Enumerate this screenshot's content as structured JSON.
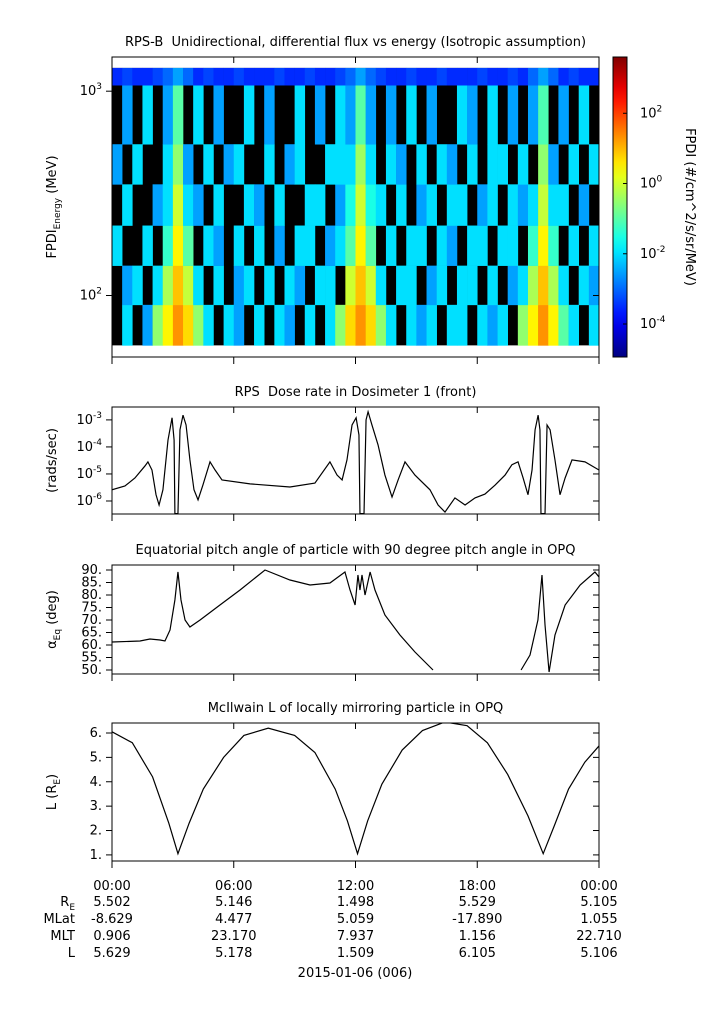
{
  "chart_data": [
    {
      "type": "heatmap",
      "title": "RPS-B  Unidirectional, differential flux vs energy (Isotropic assumption)",
      "ylabel": "FPDI_{Energy} (MeV)",
      "ylog": true,
      "ylim": [
        50,
        1470
      ],
      "yticks": [
        {
          "value": 100,
          "label": "10^{2}"
        },
        {
          "value": 1000,
          "label": "10^{3}"
        }
      ],
      "x_bins": [
        0,
        0.5,
        1,
        1.5,
        2,
        2.5,
        3,
        3.5,
        4,
        4.5,
        5,
        5.5,
        6,
        6.5,
        7,
        7.5,
        8,
        8.5,
        9,
        9.5,
        10,
        10.5,
        11,
        11.5,
        12,
        12.5,
        13,
        13.5,
        14,
        14.5,
        15,
        15.5,
        16,
        16.5,
        17,
        17.5,
        18,
        18.5,
        19,
        19.5,
        20,
        20.5,
        21,
        21.5,
        22,
        22.5,
        23,
        23.5,
        24
      ],
      "y_bins": [
        57,
        90,
        140,
        220,
        350,
        550,
        1070,
        1300
      ],
      "values": [
        [
          null,
          0.01,
          null,
          0.003,
          0.3,
          3,
          20,
          5,
          0.3,
          0.01,
          null,
          0.01,
          0.003,
          null,
          0.01,
          null,
          0.01,
          0.003,
          null,
          0.01,
          null,
          0.01,
          0.3,
          5,
          20,
          5,
          0.3,
          0.01,
          null,
          0.01,
          0.003,
          0.01,
          null,
          0.01,
          0.01,
          null,
          0.01,
          0.003,
          0.01,
          null,
          0.3,
          3,
          20,
          3,
          0.1,
          0.01,
          null,
          0.01
        ],
        [
          null,
          0.003,
          0.01,
          null,
          0.01,
          0.5,
          8,
          0.8,
          0.01,
          null,
          0.01,
          null,
          0.003,
          0.01,
          null,
          0.01,
          null,
          0.01,
          0.003,
          null,
          0.01,
          0.01,
          null,
          1,
          8,
          1,
          0.01,
          null,
          0.01,
          0.01,
          null,
          0.003,
          0.01,
          null,
          0.01,
          0.01,
          null,
          0.01,
          null,
          0.003,
          0.01,
          0.5,
          8,
          0.5,
          0.01,
          null,
          0.01,
          0.003
        ],
        [
          0.01,
          null,
          null,
          0.01,
          null,
          0.05,
          3,
          0.1,
          null,
          0.01,
          0.003,
          null,
          0.01,
          null,
          0.01,
          null,
          0.003,
          null,
          0.01,
          0.01,
          null,
          0.003,
          0.01,
          0.1,
          3,
          0.1,
          null,
          0.01,
          null,
          0.01,
          0.01,
          null,
          0.01,
          0.003,
          null,
          0.01,
          0.01,
          null,
          0.01,
          0.01,
          null,
          0.05,
          3,
          0.05,
          null,
          0.01,
          null,
          0.01
        ],
        [
          null,
          0.01,
          null,
          null,
          0.003,
          0.01,
          1,
          0.01,
          0.003,
          null,
          0.01,
          null,
          null,
          0.01,
          0.003,
          null,
          0.01,
          null,
          null,
          0.01,
          0.01,
          null,
          0.003,
          0.03,
          1,
          0.03,
          0.01,
          null,
          0.01,
          null,
          0.003,
          0.01,
          null,
          0.01,
          0.01,
          null,
          0.003,
          0.01,
          null,
          0.01,
          0.003,
          0.01,
          0.8,
          0.01,
          0.01,
          null,
          0.003,
          null
        ],
        [
          0.003,
          null,
          0.01,
          null,
          null,
          0.01,
          0.3,
          0.003,
          null,
          0.01,
          null,
          0.003,
          0.01,
          null,
          null,
          0.01,
          null,
          0.003,
          0.01,
          null,
          null,
          0.01,
          0.01,
          0.01,
          0.4,
          0.01,
          null,
          0.01,
          0.003,
          null,
          0.01,
          null,
          0.01,
          0.003,
          null,
          0.01,
          null,
          0.01,
          0.01,
          null,
          0.01,
          null,
          0.3,
          0.003,
          null,
          0.01,
          null,
          0.01
        ],
        [
          null,
          0.003,
          null,
          0.01,
          null,
          0.003,
          0.1,
          null,
          0.01,
          null,
          0.003,
          null,
          null,
          0.01,
          null,
          0.003,
          null,
          null,
          0.01,
          null,
          0.003,
          null,
          0.01,
          0.003,
          0.1,
          0.003,
          null,
          0.003,
          null,
          0.01,
          null,
          0.003,
          null,
          null,
          0.01,
          0.003,
          null,
          0.01,
          null,
          0.003,
          null,
          0.003,
          0.08,
          null,
          0.003,
          null,
          0.01,
          null
        ],
        [
          0.0003,
          0.0005,
          0.0003,
          0.0003,
          0.0005,
          0.001,
          0.003,
          0.001,
          0.0003,
          0.0005,
          0.0003,
          0.0003,
          0.0005,
          0.0003,
          0.0003,
          0.0003,
          0.0005,
          0.0003,
          0.0003,
          0.0005,
          0.0003,
          0.0003,
          0.0005,
          0.001,
          0.003,
          0.001,
          0.0005,
          0.0003,
          0.0003,
          0.0005,
          0.0003,
          0.0003,
          0.0005,
          0.0003,
          0.0003,
          0.0003,
          0.0005,
          0.0003,
          0.0003,
          0.0005,
          0.0003,
          0.001,
          0.003,
          0.001,
          0.0003,
          0.0005,
          0.0003,
          0.0003
        ]
      ],
      "colormap": "jet",
      "colorbar": {
        "label": "FPDI (#/cm^2/s/sr/MeV)",
        "log": true,
        "lim": [
          1.15e-05,
          4000
        ],
        "ticks": [
          {
            "value": 0.0001,
            "label": "10^{-4}"
          },
          {
            "value": 0.01,
            "label": "10^{-2}"
          },
          {
            "value": 1,
            "label": "10^{0}"
          },
          {
            "value": 100,
            "label": "10^{2}"
          }
        ]
      }
    },
    {
      "type": "line",
      "title": "RPS  Dose rate in Dosimeter 1 (front)",
      "ylabel": "(rads/sec)",
      "ylog": true,
      "ylim": [
        3.3e-07,
        0.003
      ],
      "yticks": [
        {
          "value": 1e-06,
          "label": "10^{-6}"
        },
        {
          "value": 1e-05,
          "label": "10^{-5}"
        },
        {
          "value": 0.0001,
          "label": "10^{-4}"
        },
        {
          "value": 0.001,
          "label": "10^{-3}"
        }
      ],
      "x": [
        0,
        0.64,
        1.13,
        1.63,
        1.77,
        1.97,
        2.17,
        2.32,
        2.51,
        2.76,
        2.96,
        3.06,
        3.1,
        3.25,
        3.35,
        3.5,
        3.65,
        3.84,
        4.04,
        4.24,
        4.48,
        4.83,
        5.08,
        5.42,
        6.8,
        8.77,
        10,
        10.74,
        11.09,
        11.34,
        11.58,
        11.83,
        12.03,
        12.17,
        12.22,
        12.42,
        12.52,
        12.62,
        12.81,
        13.11,
        13.45,
        13.8,
        14.1,
        14.44,
        14.93,
        15.67,
        16.07,
        16.41,
        16.9,
        17.4,
        17.89,
        18.38,
        18.88,
        19.37,
        19.71,
        20.01,
        20.26,
        20.5,
        20.7,
        20.85,
        21,
        21.09,
        21.14,
        21.34,
        21.44,
        21.59,
        21.83,
        22.08,
        22.33,
        22.67,
        23.31,
        24
      ],
      "series": [
        {
          "color": "#000000",
          "values": [
            2.6e-06,
            3.6e-06,
            7.1e-06,
            2e-05,
            2.8e-05,
            1.4e-05,
            1.7e-06,
            7.1e-07,
            2.6e-06,
            0.00018,
            0.0012,
            0.00018,
            3.4e-07,
            3.4e-07,
            0.00043,
            0.0015,
            0.00065,
            3.3e-05,
            2.6e-06,
            1.1e-06,
            3.9e-06,
            2.8e-05,
            1.4e-05,
            6e-06,
            4.3e-06,
            3.3e-06,
            4.6e-06,
            2.8e-05,
            9.1e-06,
            6e-06,
            3.3e-05,
            0.00065,
            0.0012,
            0.00028,
            3.4e-07,
            3.4e-07,
            0.001,
            0.002,
            0.00065,
            0.00012,
            9.1e-06,
            1.4e-06,
            6e-06,
            2.8e-05,
            9.1e-06,
            2.6e-06,
            7.1e-07,
            3.9e-07,
            1.3e-06,
            7.1e-07,
            1.3e-06,
            1.8e-06,
            3.9e-06,
            9.1e-06,
            2.2e-05,
            2.8e-05,
            7.1e-06,
            1.7e-06,
            1.4e-05,
            0.00043,
            0.0015,
            0.00043,
            3.4e-07,
            3.4e-07,
            0.00065,
            0.00043,
            3.3e-05,
            1.7e-06,
            7.1e-06,
            3.3e-05,
            2.8e-05,
            1.4e-05
          ]
        }
      ]
    },
    {
      "type": "line",
      "title": "Equatorial pitch angle of particle with 90 degree pitch angle in OPQ",
      "ylabel": "α_{Eq} (deg)",
      "ylim": [
        48.4,
        92
      ],
      "yticks": [
        {
          "value": 50,
          "label": "50."
        },
        {
          "value": 55,
          "label": "55."
        },
        {
          "value": 60,
          "label": "60."
        },
        {
          "value": 65,
          "label": "65."
        },
        {
          "value": 70,
          "label": "70."
        },
        {
          "value": 75,
          "label": "75."
        },
        {
          "value": 80,
          "label": "80."
        },
        {
          "value": 85,
          "label": "85."
        },
        {
          "value": 90,
          "label": "90."
        }
      ],
      "x": [
        0,
        1.38,
        1.87,
        2.37,
        2.61,
        2.86,
        3.1,
        3.25,
        3.4,
        3.6,
        3.84,
        4.34,
        5.32,
        6.31,
        7.54,
        8.77,
        9.76,
        10.74,
        11.48,
        11.73,
        11.98,
        12.12,
        12.22,
        12.32,
        12.47,
        12.72,
        12.96,
        13.45,
        14.19,
        14.93,
        15.82,
        18,
        20.16,
        20.6,
        20.99,
        21.19,
        21.34,
        21.54,
        21.83,
        22.33,
        23.07,
        23.8,
        24
      ],
      "series": [
        {
          "color": "#000000",
          "values": [
            61.2,
            61.6,
            62.4,
            62,
            61.6,
            66,
            78,
            89.2,
            78,
            70,
            67.2,
            70,
            76,
            82,
            90,
            86,
            84,
            84.8,
            89.2,
            82,
            76,
            88,
            82,
            88,
            80,
            89.2,
            82,
            72,
            64,
            57.2,
            50,
            null,
            50,
            56,
            70,
            88,
            68,
            49.2,
            64,
            76,
            84,
            89.2,
            87.2
          ]
        }
      ]
    },
    {
      "type": "line",
      "title": "McIlwain L of locally mirroring particle in OPQ",
      "ylabel": "L (R_{E})",
      "ylim": [
        0.75,
        6.41
      ],
      "yticks": [
        {
          "value": 1,
          "label": "1."
        },
        {
          "value": 2,
          "label": "2."
        },
        {
          "value": 3,
          "label": "3."
        },
        {
          "value": 4,
          "label": "4."
        },
        {
          "value": 5,
          "label": "5."
        },
        {
          "value": 6,
          "label": "6."
        }
      ],
      "x": [
        0,
        1,
        2,
        2.8,
        3.25,
        3.8,
        4.5,
        5.5,
        6.5,
        7.7,
        9,
        10,
        11,
        11.6,
        12.1,
        12.6,
        13.3,
        14.3,
        15.3,
        16.4,
        17.5,
        18.5,
        19.5,
        20.5,
        21.25,
        21.8,
        22.5,
        23.3,
        24
      ],
      "series": [
        {
          "color": "#000000",
          "values": [
            6.05,
            5.6,
            4.2,
            2.3,
            1.05,
            2.3,
            3.7,
            5.0,
            5.9,
            6.2,
            5.9,
            5.2,
            3.7,
            2.4,
            1.05,
            2.4,
            3.9,
            5.3,
            6.1,
            6.45,
            6.3,
            5.6,
            4.3,
            2.6,
            1.05,
            2.2,
            3.7,
            4.8,
            5.47
          ]
        }
      ]
    }
  ],
  "time_axis": {
    "xlim": [
      0,
      24
    ],
    "xticks": [
      {
        "value": 0,
        "label": "00:00"
      },
      {
        "value": 6,
        "label": "06:00"
      },
      {
        "value": 12,
        "label": "12:00"
      },
      {
        "value": 18,
        "label": "18:00"
      },
      {
        "value": 24,
        "label": "00:00"
      }
    ]
  },
  "ephemeris": {
    "rows": [
      {
        "label": "R_{E}",
        "values": [
          "5.502",
          "5.146",
          "1.498",
          "5.529",
          "5.105"
        ]
      },
      {
        "label": "MLat",
        "values": [
          "-8.629",
          "4.477",
          "5.059",
          "-17.890",
          "1.055"
        ]
      },
      {
        "label": "MLT",
        "values": [
          "0.906",
          "23.170",
          "7.937",
          "1.156",
          "22.710"
        ]
      },
      {
        "label": "L",
        "values": [
          "5.629",
          "5.178",
          "1.509",
          "6.105",
          "5.106"
        ]
      }
    ]
  },
  "date": "2015-01-06 (006)"
}
